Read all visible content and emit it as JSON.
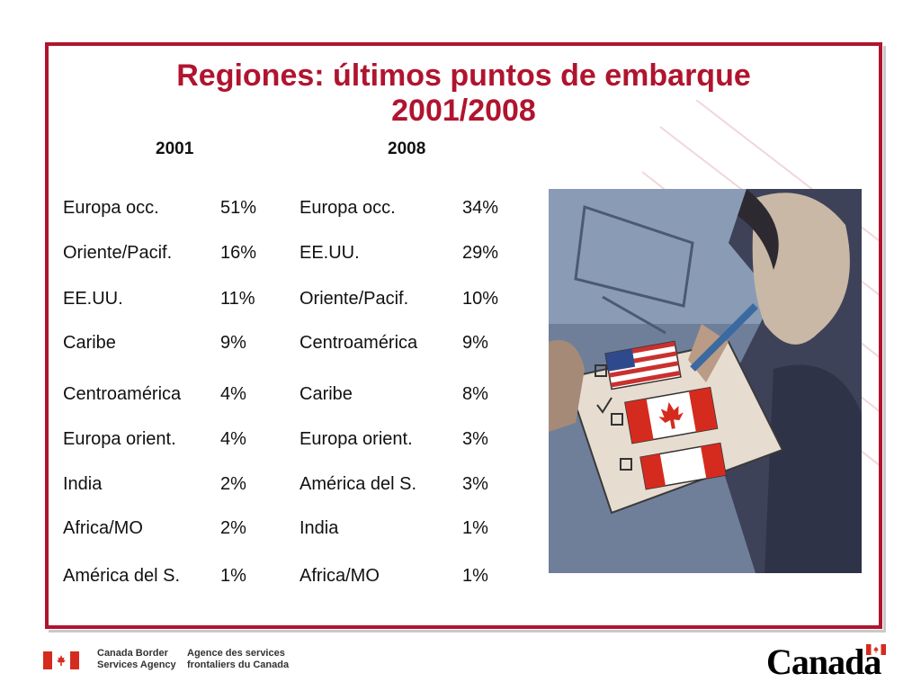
{
  "slide": {
    "title_line1": "Regiones: últimos puntos de embarque",
    "title_line2": "2001/2008",
    "year_2001": "2001",
    "year_2008": "2008"
  },
  "table": {
    "rows": [
      {
        "r2001": "Europa occ.",
        "p2001": "51%",
        "r2008": "Europa occ.",
        "p2008": "34%"
      },
      {
        "r2001": "Oriente/Pacif.",
        "p2001": "16%",
        "r2008": "EE.UU.",
        "p2008": "29%"
      },
      {
        "r2001": "EE.UU.",
        "p2001": "11%",
        "r2008": "Oriente/Pacif.",
        "p2008": "10%"
      },
      {
        "r2001": "Caribe",
        "p2001": "9%",
        "r2008": "Centroamérica",
        "p2008": "9%"
      },
      {
        "r2001": "Centroamérica",
        "p2001": "4%",
        "r2008": "Caribe",
        "p2008": "8%"
      },
      {
        "r2001": "Europa orient.",
        "p2001": "4%",
        "r2008": "Europa orient.",
        "p2008": "3%"
      },
      {
        "r2001": "India",
        "p2001": "2%",
        "r2008": "América del S.",
        "p2008": "3%"
      },
      {
        "r2001": "Africa/MO",
        "p2001": "2%",
        "r2008": "India",
        "p2008": "1%"
      },
      {
        "r2001": "América del S.",
        "p2001": "1%",
        "r2008": "Africa/MO",
        "p2008": "1%"
      }
    ]
  },
  "footer": {
    "agency_en_line1": "Canada Border",
    "agency_en_line2": "Services Agency",
    "agency_fr_line1": "Agence des services",
    "agency_fr_line2": "frontaliers du Canada",
    "wordmark": "Canada"
  },
  "colors": {
    "accent": "#b0142e",
    "flag_red": "#d52b1e"
  },
  "icons": [
    "canada-flag-icon",
    "us-flag-icon",
    "maple-leaf-icon"
  ]
}
